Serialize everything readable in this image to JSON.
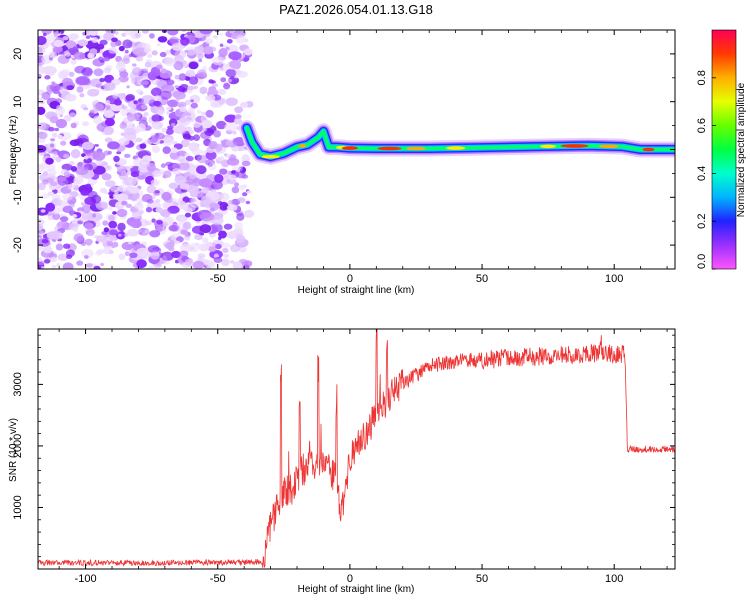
{
  "title": "PAZ1.2026.054.01.13.G18",
  "chart_data": [
    {
      "type": "heatmap",
      "name": "spectrogram",
      "xlabel": "Height of straight line (km)",
      "ylabel": "Frequency (Hz)",
      "xlim": [
        -118,
        123
      ],
      "ylim": [
        -25,
        25
      ],
      "xticks": [
        -100,
        -50,
        0,
        50,
        100
      ],
      "yticks": [
        -20,
        -10,
        0,
        10,
        20
      ],
      "noise_region_x": [
        -118,
        -38
      ],
      "signal_track": [
        {
          "x": -39,
          "y": 4.5
        },
        {
          "x": -37,
          "y": 1.5
        },
        {
          "x": -34,
          "y": -1.0
        },
        {
          "x": -30,
          "y": -1.5
        },
        {
          "x": -25,
          "y": -0.8
        },
        {
          "x": -20,
          "y": 0.5
        },
        {
          "x": -16,
          "y": 1.0
        },
        {
          "x": -12,
          "y": 2.5
        },
        {
          "x": -10,
          "y": 3.8
        },
        {
          "x": -8,
          "y": 0.5
        },
        {
          "x": -5,
          "y": 0.5
        },
        {
          "x": 0,
          "y": 0.3
        },
        {
          "x": 10,
          "y": 0.2
        },
        {
          "x": 30,
          "y": 0.2
        },
        {
          "x": 50,
          "y": 0.4
        },
        {
          "x": 70,
          "y": 0.6
        },
        {
          "x": 90,
          "y": 0.8
        },
        {
          "x": 103,
          "y": 0.6
        },
        {
          "x": 110,
          "y": 0.0
        },
        {
          "x": 123,
          "y": 0.0
        }
      ]
    },
    {
      "type": "line",
      "name": "snr",
      "xlabel": "Height of straight line (km)",
      "ylabel": "SNR (10 * v/v)",
      "color": "#ee3333",
      "xlim": [
        -118,
        123
      ],
      "ylim": [
        0,
        3900
      ],
      "xticks": [
        -100,
        -50,
        0,
        50,
        100
      ],
      "yticks": [
        1000,
        2000,
        3000
      ],
      "profile": [
        {
          "x": -118,
          "y": 100
        },
        {
          "x": -80,
          "y": 100
        },
        {
          "x": -40,
          "y": 110
        },
        {
          "x": -33,
          "y": 120
        },
        {
          "x": -30,
          "y": 700
        },
        {
          "x": -26,
          "y": 1200
        },
        {
          "x": -22,
          "y": 1300
        },
        {
          "x": -18,
          "y": 1600
        },
        {
          "x": -14,
          "y": 1700
        },
        {
          "x": -10,
          "y": 1750
        },
        {
          "x": -6,
          "y": 1500
        },
        {
          "x": -3,
          "y": 900
        },
        {
          "x": 0,
          "y": 1800
        },
        {
          "x": 5,
          "y": 2150
        },
        {
          "x": 10,
          "y": 2500
        },
        {
          "x": 15,
          "y": 2800
        },
        {
          "x": 20,
          "y": 3000
        },
        {
          "x": 25,
          "y": 3150
        },
        {
          "x": 30,
          "y": 3300
        },
        {
          "x": 40,
          "y": 3380
        },
        {
          "x": 50,
          "y": 3400
        },
        {
          "x": 70,
          "y": 3450
        },
        {
          "x": 90,
          "y": 3500
        },
        {
          "x": 104,
          "y": 3500
        },
        {
          "x": 105,
          "y": 1950
        },
        {
          "x": 123,
          "y": 1950
        }
      ]
    }
  ],
  "colorbar": {
    "label": "Normalized spectral amplitude",
    "range": [
      0,
      1
    ],
    "ticks": [
      "0.0",
      "0.2",
      "0.4",
      "0.6",
      "0.8"
    ],
    "tick_values": [
      0,
      0.2,
      0.4,
      0.6,
      0.8
    ]
  }
}
